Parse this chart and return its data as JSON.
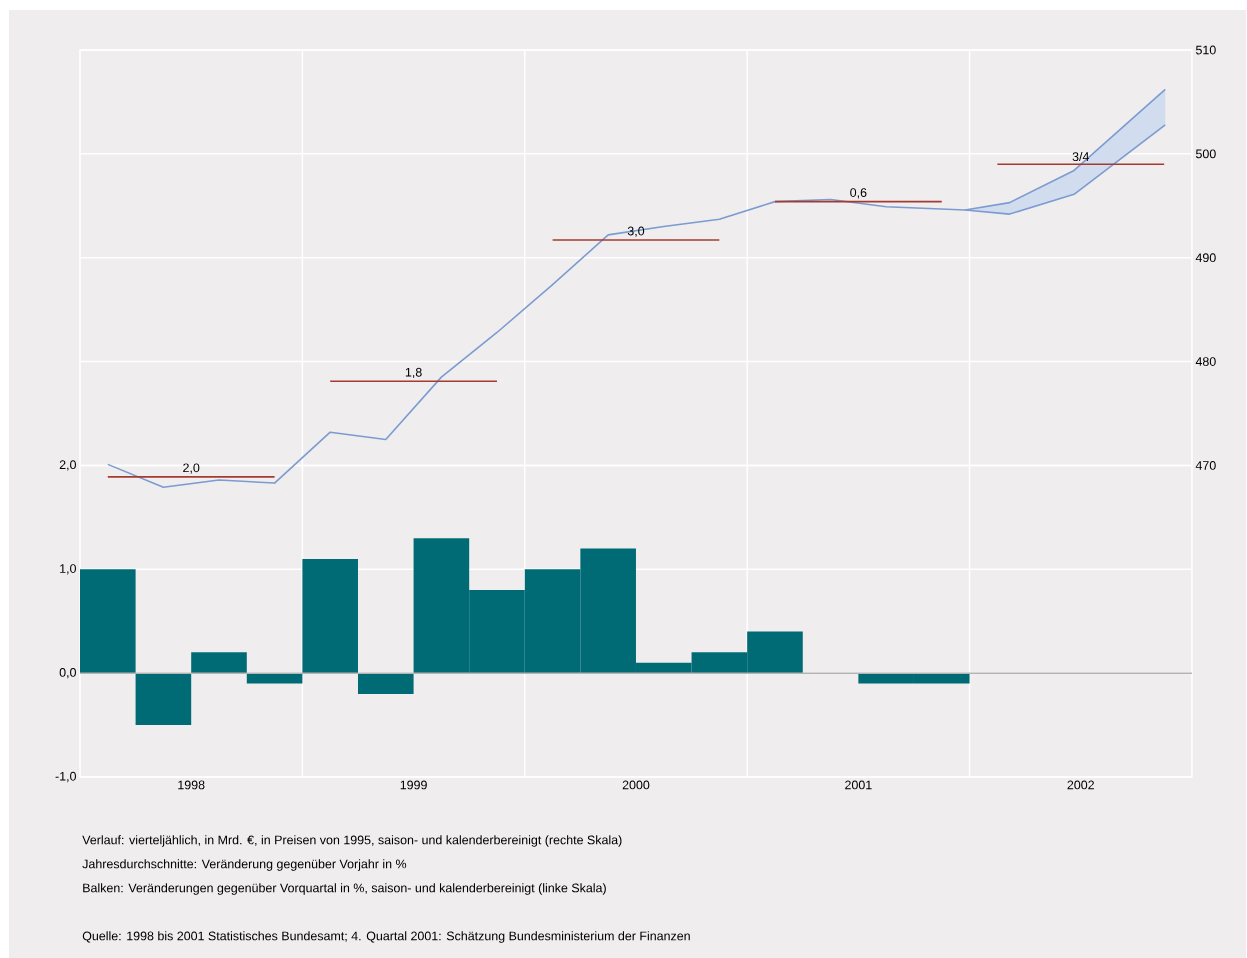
{
  "chart_data": {
    "type": "bar",
    "x": [
      1998.125,
      1998.375,
      1998.625,
      1998.875,
      1999.125,
      1999.375,
      1999.625,
      1999.875,
      2000.125,
      2000.375,
      2000.625,
      2000.875,
      2001.125,
      2001.375,
      2001.625,
      2001.875
    ],
    "xlim": [
      1998,
      2003
    ],
    "xticks": [
      {
        "value": 1998.5,
        "label": "1998"
      },
      {
        "value": 1999,
        "label": null
      },
      {
        "value": 1999.5,
        "label": "1999"
      },
      {
        "value": 2000,
        "label": null
      },
      {
        "value": 2000.5,
        "label": "2000"
      },
      {
        "value": 2001,
        "label": null
      },
      {
        "value": 2001.5,
        "label": "2001"
      },
      {
        "value": 2002,
        "label": null
      },
      {
        "value": 2002.5,
        "label": "2002"
      }
    ],
    "ylim": [
      -1,
      6
    ],
    "yticks": [
      {
        "value": -1,
        "label": "-1,0"
      },
      {
        "value": 0,
        "label": "0,0"
      },
      {
        "value": 1,
        "label": "1,0"
      },
      {
        "value": 2,
        "label": "2,0"
      }
    ],
    "y2lim": [
      440,
      510
    ],
    "y2ticks": [
      470,
      480,
      490,
      500,
      510
    ],
    "grid": true,
    "series": [
      {
        "color": "#006b74",
        "values": [
          1.0,
          -0.5,
          0.2,
          -0.1,
          1.1,
          -0.2,
          1.3,
          0.8,
          1.0,
          1.2,
          0.1,
          0.2,
          0.4,
          0.0,
          -0.1,
          -0.1
        ]
      },
      {
        "type": "line",
        "axis": "y2",
        "color": "#7b9bd1",
        "x": [
          1998.125,
          1998.375,
          1998.625,
          1998.875,
          1999.125,
          1999.375,
          1999.625,
          1999.875,
          2000.125,
          2000.375,
          2000.625,
          2000.875,
          2001.125,
          2001.375,
          2001.625,
          2001.98,
          2002.18,
          2002.47,
          2002.88
        ],
        "values": [
          470.1,
          467.9,
          468.6,
          468.3,
          473.2,
          472.5,
          478.5,
          482.8,
          487.4,
          492.2,
          493.0,
          493.7,
          495.4,
          495.6,
          494.9,
          494.6,
          495.3,
          498.4,
          506.2
        ],
        "lower": [
          null,
          null,
          null,
          null,
          null,
          null,
          null,
          null,
          null,
          null,
          null,
          null,
          null,
          null,
          null,
          494.6,
          494.2,
          496.1,
          502.8
        ],
        "upper": [
          null,
          null,
          null,
          null,
          null,
          null,
          null,
          null,
          null,
          null,
          null,
          null,
          null,
          null,
          null,
          494.6,
          495.3,
          498.4,
          506.2
        ]
      },
      {
        "type": "line",
        "axis": "y2",
        "color": "#7b9bd1",
        "x": [
          2001.98,
          2002.18,
          2002.47,
          2002.88
        ],
        "values": [
          494.6,
          494.2,
          496.1,
          502.8
        ]
      },
      {
        "type": "line",
        "axis": "y2",
        "color": "#a33b32",
        "x": [
          1998.125,
          1998.5,
          1998.875
        ],
        "values": [
          468.9,
          468.9,
          468.9
        ]
      },
      {
        "type": "line",
        "axis": "y2",
        "color": "#a33b32",
        "x": [
          1999.125,
          1999.5,
          1999.875
        ],
        "values": [
          478.1,
          478.1,
          478.1
        ]
      },
      {
        "type": "line",
        "axis": "y2",
        "color": "#a33b32",
        "x": [
          2000.125,
          2000.5,
          2000.875
        ],
        "values": [
          491.7,
          491.7,
          491.7
        ]
      },
      {
        "type": "line",
        "axis": "y2",
        "color": "#a33b32",
        "x": [
          2001.125,
          2001.5,
          2001.875
        ],
        "values": [
          495.4,
          495.4,
          495.4
        ]
      },
      {
        "type": "line",
        "axis": "y2",
        "color": "#a33b32",
        "x": [
          2002.125,
          2002.5,
          2002.875
        ],
        "values": [
          499.0,
          499.0,
          499.0
        ]
      }
    ],
    "ref_lines": [
      {
        "axis": "y",
        "value": 0,
        "color": "#b4b4b4"
      }
    ],
    "annotations": [
      "2,0",
      "1,8",
      "3,0",
      "0,6",
      "3/4",
      "Verlauf: vierteljählich, in Mrd. €, in Preisen von 1995, saison- und kalenderbereinigt (rechte Skala)",
      "Jahresdurchschnitte: Veränderung gegenüber Vorjahr in %",
      "Balken: Veränderungen gegenüber Vorquartal in %, saison- und kalenderbereinigt (linke Skala)",
      "Quelle: 1998 bis 2001 Statistisches Bundesamt; 4. Quartal 2001: Schätzung Bundesministerium der Finanzen"
    ]
  }
}
